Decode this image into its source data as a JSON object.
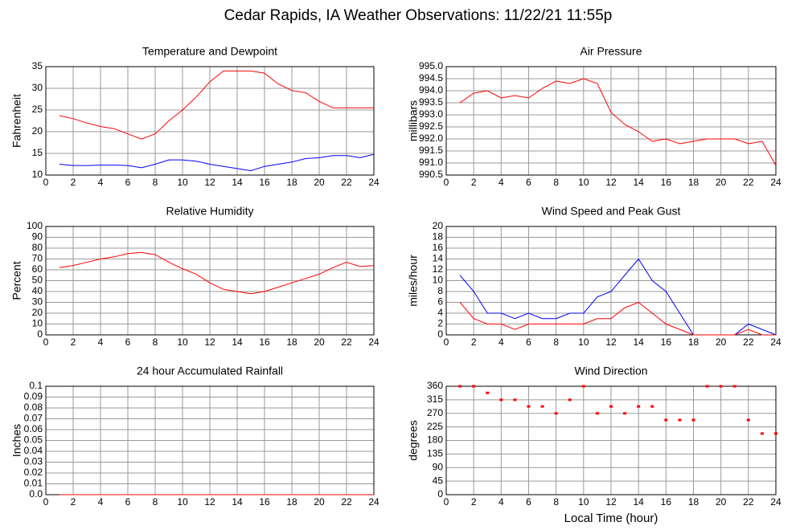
{
  "title": "Cedar Rapids, IA Weather Observations: 11/22/21 11:55p",
  "chart_data": [
    {
      "type": "line",
      "title": "Temperature and Dewpoint",
      "ylabel": "Fahrenheit",
      "x": [
        1,
        2,
        3,
        4,
        5,
        6,
        7,
        8,
        9,
        10,
        11,
        12,
        13,
        14,
        15,
        16,
        17,
        18,
        19,
        20,
        21,
        22,
        23,
        24
      ],
      "series": [
        {
          "color": "#ff0000",
          "values": [
            23.7,
            23,
            22,
            21.2,
            20.7,
            19.5,
            18.3,
            19.5,
            22.5,
            25,
            28,
            31.5,
            34,
            34,
            34,
            33.5,
            31,
            29.5,
            29,
            27,
            25.5,
            25.5,
            25.5,
            25.5
          ]
        },
        {
          "color": "#0000ff",
          "values": [
            12.5,
            12.2,
            12.2,
            12.3,
            12.3,
            12.2,
            11.7,
            12.5,
            13.5,
            13.5,
            13.2,
            12.5,
            12,
            11.5,
            11,
            12,
            12.5,
            13,
            13.8,
            14,
            14.5,
            14.5,
            14,
            14.8
          ]
        }
      ],
      "xlim": [
        0,
        24
      ],
      "xticks": [
        2,
        4,
        6,
        8,
        10,
        12,
        14,
        16,
        18,
        20,
        22,
        24
      ],
      "ylim": [
        10,
        35
      ],
      "yticks": [
        10,
        15,
        20,
        25,
        30,
        35
      ],
      "grid": true
    },
    {
      "type": "line",
      "title": "Air Pressure",
      "ylabel": "millibars",
      "x": [
        1,
        2,
        3,
        4,
        5,
        6,
        7,
        8,
        9,
        10,
        11,
        12,
        13,
        14,
        15,
        16,
        17,
        18,
        19,
        20,
        21,
        22,
        23,
        24
      ],
      "series": [
        {
          "color": "#ff0000",
          "values": [
            993.5,
            993.9,
            994.0,
            993.7,
            993.8,
            993.7,
            994.1,
            994.4,
            994.3,
            994.5,
            994.3,
            993.1,
            992.6,
            992.3,
            991.9,
            992.0,
            991.8,
            991.9,
            992.0,
            992.0,
            992.0,
            991.8,
            991.9,
            990.9
          ]
        }
      ],
      "xlim": [
        0,
        24
      ],
      "xticks": [
        2,
        4,
        6,
        8,
        10,
        12,
        14,
        16,
        18,
        20,
        22,
        24
      ],
      "ylim": [
        990.5,
        995
      ],
      "yticks": [
        990.5,
        {
          "value": 991,
          "label": "991.0"
        },
        991.5,
        {
          "value": 992,
          "label": "992.0"
        },
        992.5,
        {
          "value": 993,
          "label": "993.0"
        },
        993.5,
        {
          "value": 994,
          "label": "994.0"
        },
        994.5,
        {
          "value": 995,
          "label": "995.0"
        }
      ],
      "grid": true
    },
    {
      "type": "line",
      "title": "Relative Humidity",
      "ylabel": "Percent",
      "x": [
        1,
        2,
        3,
        4,
        5,
        6,
        7,
        8,
        9,
        10,
        11,
        12,
        13,
        14,
        15,
        16,
        17,
        18,
        19,
        20,
        21,
        22,
        23,
        24
      ],
      "series": [
        {
          "color": "#ff0000",
          "values": [
            62,
            64,
            67,
            70,
            72,
            75,
            76,
            74,
            67,
            61,
            56,
            48,
            42,
            40,
            38,
            40,
            44,
            48,
            52,
            56,
            62,
            67,
            63,
            64
          ]
        }
      ],
      "xlim": [
        0,
        24
      ],
      "xticks": [
        2,
        4,
        6,
        8,
        10,
        12,
        14,
        16,
        18,
        20,
        22,
        24
      ],
      "ylim": [
        0,
        100
      ],
      "yticks": [
        0,
        10,
        20,
        30,
        40,
        50,
        60,
        70,
        80,
        90,
        100
      ],
      "grid": true
    },
    {
      "type": "line",
      "title": "Wind Speed and Peak Gust",
      "ylabel": "miles/hour",
      "x": [
        1,
        2,
        3,
        4,
        5,
        6,
        7,
        8,
        9,
        10,
        11,
        12,
        13,
        14,
        15,
        16,
        17,
        18,
        19,
        20,
        21,
        22,
        23,
        24
      ],
      "series": [
        {
          "color": "#0000ff",
          "values": [
            11,
            8,
            4,
            4,
            3,
            4,
            3,
            3,
            4,
            4,
            7,
            8,
            11,
            14,
            10,
            8,
            4,
            0,
            0,
            0,
            0,
            2,
            1,
            0
          ]
        },
        {
          "color": "#ff0000",
          "values": [
            6,
            3,
            2,
            2,
            1,
            2,
            2,
            2,
            2,
            2,
            3,
            3,
            5,
            6,
            4,
            2,
            1,
            0,
            0,
            0,
            0,
            1,
            0,
            0
          ]
        }
      ],
      "xlim": [
        0,
        24
      ],
      "xticks": [
        2,
        4,
        6,
        8,
        10,
        12,
        14,
        16,
        18,
        20,
        22,
        24
      ],
      "ylim": [
        0,
        20
      ],
      "yticks": [
        0,
        2,
        4,
        6,
        8,
        10,
        12,
        14,
        16,
        18,
        20
      ],
      "grid": true
    },
    {
      "type": "line",
      "title": "24 hour Accumulated Rainfall",
      "ylabel": "Inches",
      "x": [
        1,
        2,
        3,
        4,
        5,
        6,
        7,
        8,
        9,
        10,
        11,
        12,
        13,
        14,
        15,
        16,
        17,
        18,
        19,
        20,
        21,
        22,
        23,
        24
      ],
      "series": [
        {
          "color": "#ff0000",
          "values": [
            0,
            0,
            0,
            0,
            0,
            0,
            0,
            0,
            0,
            0,
            0,
            0,
            0,
            0,
            0,
            0,
            0,
            0,
            0,
            0,
            0,
            0,
            0,
            0
          ]
        }
      ],
      "xlim": [
        0,
        24
      ],
      "xticks": [
        2,
        4,
        6,
        8,
        10,
        12,
        14,
        16,
        18,
        20,
        22,
        24
      ],
      "ylim": [
        0,
        0.1
      ],
      "yticks": [
        {
          "value": 0,
          "label": "0.0"
        },
        0.01,
        0.02,
        0.03,
        0.04,
        0.05,
        0.06,
        0.07,
        0.08,
        0.09,
        0.1
      ],
      "grid": true
    },
    {
      "type": "scatter",
      "title": "Wind Direction",
      "ylabel": "degrees",
      "xlabel": "Local Time (hour)",
      "x": [
        1,
        2,
        3,
        4,
        5,
        6,
        7,
        8,
        9,
        10,
        11,
        12,
        13,
        14,
        15,
        16,
        17,
        18,
        19,
        20,
        21,
        22,
        23,
        24
      ],
      "series": [
        {
          "color": "#ff0000",
          "values": [
            360,
            360,
            338,
            315,
            315,
            293,
            293,
            270,
            315,
            360,
            270,
            293,
            270,
            293,
            293,
            248,
            248,
            248,
            360,
            360,
            360,
            248,
            203,
            203
          ]
        }
      ],
      "xlim": [
        0,
        24
      ],
      "xticks": [
        2,
        4,
        6,
        8,
        10,
        12,
        14,
        16,
        18,
        20,
        22,
        24
      ],
      "ylim": [
        0,
        360
      ],
      "yticks": [
        0,
        45,
        90,
        135,
        180,
        225,
        270,
        315,
        360
      ],
      "grid": true
    }
  ]
}
